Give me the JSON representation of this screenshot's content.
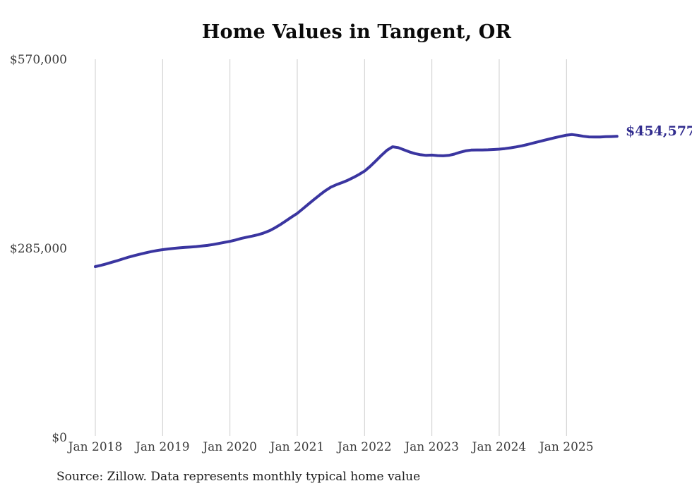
{
  "title": "Home Values in Tangent, OR",
  "latest_value_label": "$454,577",
  "source_note": "Source: Zillow. Data represents monthly typical home value",
  "colors": {
    "line": "#3a35a0",
    "end_label": "#312c8e",
    "gridline": "#cccccc",
    "title_text": "#0a0a0a",
    "axis_text": "#3d3d3d",
    "source_text": "#1f1f1f",
    "background": "#ffffff"
  },
  "chart_data": {
    "type": "line",
    "title": "Home Values in Tangent, OR",
    "xlabel": "",
    "ylabel": "",
    "x_tick_labels": [
      "Jan 2018",
      "Jan 2019",
      "Jan 2020",
      "Jan 2021",
      "Jan 2022",
      "Jan 2023",
      "Jan 2024",
      "Jan 2025"
    ],
    "y_tick_labels": [
      "$0",
      "$285,000",
      "$570,000"
    ],
    "y_ticks": [
      0,
      285000,
      570000
    ],
    "ylim": [
      0,
      570000
    ],
    "grid": "vertical-only",
    "legend": "none",
    "series_name": "Typical home value (monthly)",
    "x_monthly_start": "2018-01",
    "x_monthly_end": "2025-10",
    "final_value": 454577,
    "values": [
      257800,
      259800,
      262000,
      264500,
      267000,
      269700,
      272300,
      274600,
      276700,
      278700,
      280500,
      282100,
      283400,
      284500,
      285400,
      286200,
      286900,
      287500,
      288100,
      288900,
      289900,
      291200,
      292800,
      294400,
      296000,
      298000,
      300300,
      302300,
      304000,
      306000,
      308500,
      311900,
      316300,
      321400,
      327000,
      332700,
      338300,
      345200,
      352300,
      359300,
      366100,
      372500,
      377900,
      381600,
      384700,
      388200,
      392400,
      397000,
      402100,
      409300,
      417400,
      425900,
      433600,
      438900,
      437600,
      434300,
      431100,
      428500,
      426800,
      425900,
      426300,
      425500,
      425200,
      425900,
      427800,
      430500,
      432700,
      433800,
      434100,
      434100,
      434300,
      434700,
      435200,
      436100,
      437200,
      438600,
      440200,
      442200,
      444400,
      446500,
      448600,
      450700,
      452700,
      454600,
      456400,
      457300,
      456200,
      454700,
      453800,
      453500,
      453700,
      454100,
      454300,
      454577
    ]
  }
}
